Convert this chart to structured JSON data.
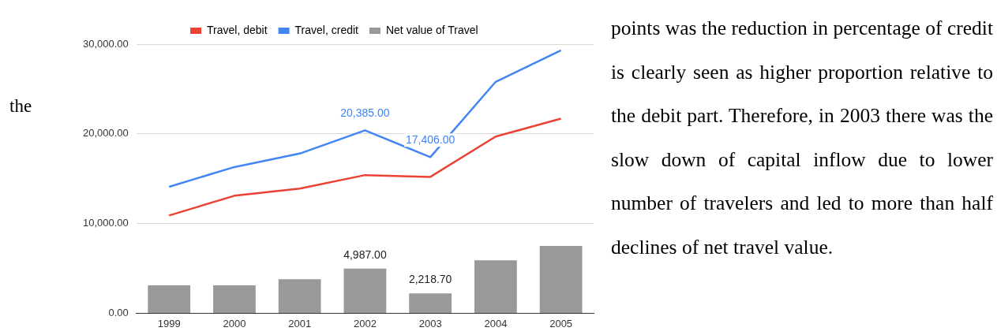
{
  "chart_data": {
    "type": "bar",
    "categories": [
      "1999",
      "2000",
      "2001",
      "2002",
      "2003",
      "2004",
      "2005"
    ],
    "series": [
      {
        "name": "Travel, debit",
        "type": "line",
        "color": "#ea4335",
        "values": [
          10900,
          13100,
          13900,
          15400,
          15200,
          19700,
          21700
        ]
      },
      {
        "name": "Travel, credit",
        "type": "line",
        "color": "#4285f4",
        "values": [
          14100,
          16300,
          17800,
          20385,
          17406,
          25800,
          29300
        ],
        "value_labels": [
          null,
          null,
          null,
          "20,385.00",
          "17,406.00",
          null,
          null
        ]
      },
      {
        "name": "Net value of Travel",
        "color": "#999999",
        "values": [
          3100,
          3100,
          3800,
          4987,
          2218.7,
          5900,
          7500
        ],
        "value_labels": [
          null,
          null,
          null,
          "4,987.00",
          "2,218.70",
          null,
          null
        ]
      }
    ],
    "ylim": [
      0,
      30000
    ],
    "yticks": [
      {
        "value": 0,
        "label": "0.00"
      },
      {
        "value": 10000,
        "label": "10,000.00"
      },
      {
        "value": 20000,
        "label": "20,000.00"
      },
      {
        "value": 30000,
        "label": "30,000.00"
      }
    ],
    "grid": "y",
    "legend": "top",
    "marker": "none",
    "annotations": [
      "the",
      "points was the reduction in percentage of credit is clearly seen as higher proportion relative to the debit part. Therefore, in 2003 there was the slow down of capital inflow due to lower number of travelers and led to more than half declines of net travel value."
    ]
  }
}
